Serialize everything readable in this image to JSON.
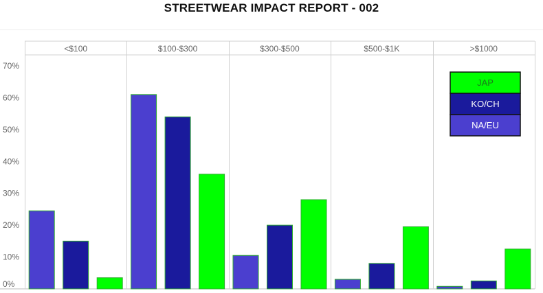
{
  "chart_data": {
    "type": "bar",
    "title": "STREETWEAR IMPACT REPORT - 002",
    "xlabel": "",
    "ylabel": "",
    "categories": [
      "<$100",
      "$100-$300",
      "$300-$500",
      "$500-$1K",
      ">$1000"
    ],
    "series": [
      {
        "name": "NA/EU",
        "values": [
          24.5,
          61,
          10.5,
          3,
          0.8
        ],
        "color": "#4b3fcf"
      },
      {
        "name": "KO/CH",
        "values": [
          15,
          54,
          20,
          8,
          2.5
        ],
        "color": "#1a1a9c"
      },
      {
        "name": "JAP",
        "values": [
          3.5,
          36,
          28,
          19.5,
          12.5
        ],
        "color": "#00ff00"
      }
    ],
    "ylim": [
      0,
      70
    ],
    "yticks": [
      "0%",
      "10%",
      "20%",
      "30%",
      "40%",
      "50%",
      "60%",
      "70%"
    ],
    "ytick_values": [
      0,
      10,
      20,
      30,
      40,
      50,
      60,
      70
    ],
    "grid": "vertical category separators",
    "legend": {
      "placement": "top-right",
      "order": [
        "JAP",
        "KO/CH",
        "NA/EU"
      ]
    },
    "colors": {
      "bar_outline": "#2fae2f",
      "legend_outline": "#111111",
      "grid": "#d0d0d0",
      "axis_text": "#666666"
    }
  }
}
